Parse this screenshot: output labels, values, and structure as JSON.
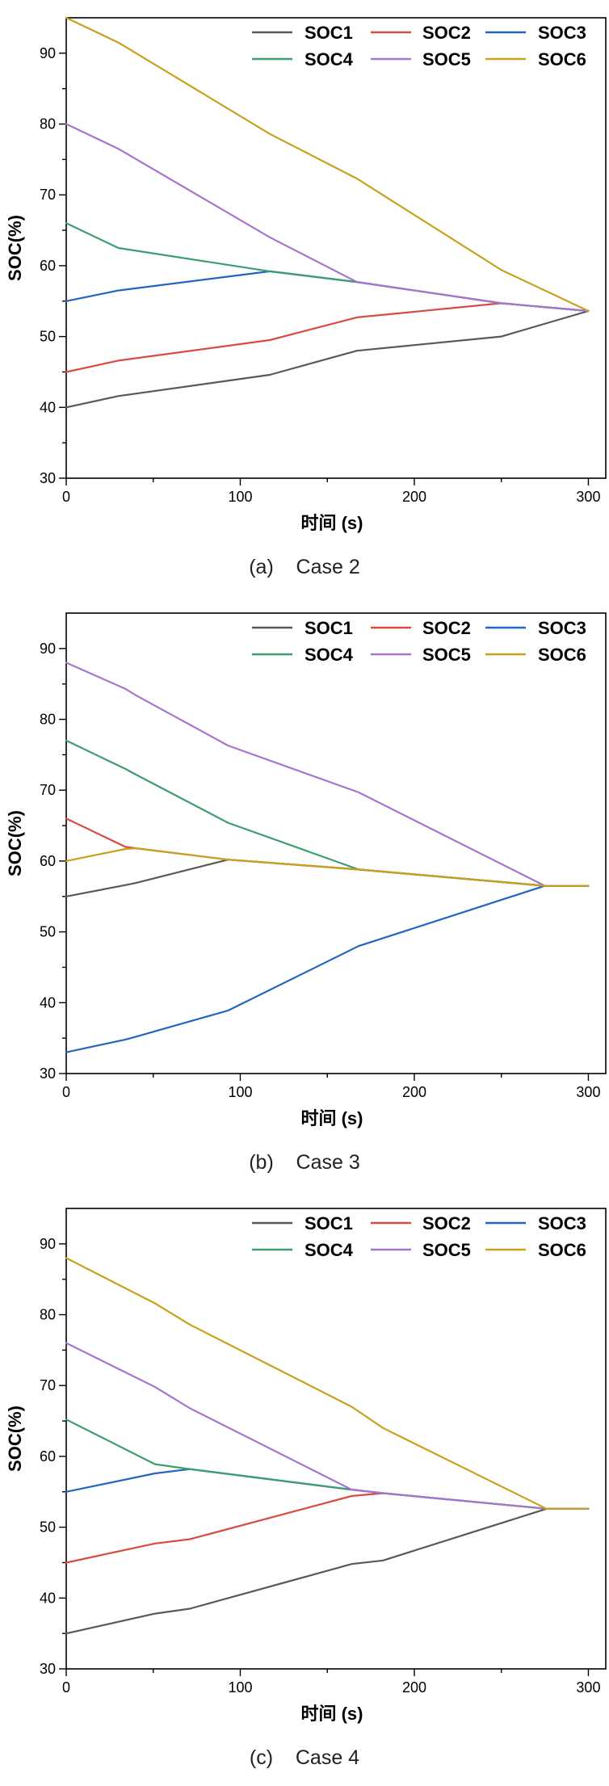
{
  "series_colors": {
    "SOC1": "#595959",
    "SOC2": "#d84a44",
    "SOC3": "#2465c2",
    "SOC4": "#3a9e6e",
    "SOC5": "#a775d0",
    "SOC6": "#c8a11e"
  },
  "chart_data": [
    {
      "type": "line",
      "caption": "(a)    Case 2",
      "xlabel": "时间 (s)",
      "ylabel": "SOC(%)",
      "xlim": [
        0,
        310
      ],
      "ylim": [
        30,
        95
      ],
      "xticks": [
        0,
        100,
        200,
        300
      ],
      "yticks": [
        30,
        40,
        50,
        60,
        70,
        80,
        90
      ],
      "legend": [
        "SOC1",
        "SOC2",
        "SOC3",
        "SOC4",
        "SOC5",
        "SOC6"
      ],
      "series": [
        {
          "name": "SOC1",
          "points": [
            [
              0,
              40
            ],
            [
              30,
              41.6
            ],
            [
              117,
              44.6
            ],
            [
              167,
              48
            ],
            [
              250,
              50
            ],
            [
              300,
              53.6
            ]
          ]
        },
        {
          "name": "SOC2",
          "points": [
            [
              0,
              45
            ],
            [
              30,
              46.6
            ],
            [
              117,
              49.5
            ],
            [
              167,
              52.7
            ],
            [
              250,
              54.7
            ],
            [
              300,
              53.6
            ]
          ]
        },
        {
          "name": "SOC3",
          "points": [
            [
              0,
              55
            ],
            [
              30,
              56.5
            ],
            [
              117,
              59.2
            ],
            [
              167,
              57.7
            ],
            [
              250,
              54.7
            ],
            [
              300,
              53.6
            ]
          ]
        },
        {
          "name": "SOC4",
          "points": [
            [
              0,
              66
            ],
            [
              30,
              62.5
            ],
            [
              117,
              59.2
            ],
            [
              167,
              57.7
            ],
            [
              250,
              54.7
            ],
            [
              300,
              53.6
            ]
          ]
        },
        {
          "name": "SOC5",
          "points": [
            [
              0,
              80
            ],
            [
              30,
              76.5
            ],
            [
              117,
              64
            ],
            [
              167,
              57.7
            ],
            [
              250,
              54.7
            ],
            [
              300,
              53.6
            ]
          ]
        },
        {
          "name": "SOC6",
          "points": [
            [
              0,
              95
            ],
            [
              30,
              91.5
            ],
            [
              117,
              78.6
            ],
            [
              167,
              72.3
            ],
            [
              250,
              59.4
            ],
            [
              300,
              53.6
            ]
          ]
        }
      ]
    },
    {
      "type": "line",
      "caption": "(b)    Case 3",
      "xlabel": "时间 (s)",
      "ylabel": "SOC(%)",
      "xlim": [
        0,
        310
      ],
      "ylim": [
        30,
        95
      ],
      "xticks": [
        0,
        100,
        200,
        300
      ],
      "yticks": [
        30,
        40,
        50,
        60,
        70,
        80,
        90
      ],
      "legend": [
        "SOC1",
        "SOC2",
        "SOC3",
        "SOC4",
        "SOC5",
        "SOC6"
      ],
      "series": [
        {
          "name": "SOC1",
          "points": [
            [
              0,
              55
            ],
            [
              34,
              56.6
            ],
            [
              40,
              56.9
            ],
            [
              93,
              60.2
            ],
            [
              168,
              58.8
            ],
            [
              275,
              56.5
            ],
            [
              300,
              56.5
            ]
          ]
        },
        {
          "name": "SOC2",
          "points": [
            [
              0,
              66
            ],
            [
              34,
              62
            ],
            [
              40,
              61.8
            ],
            [
              93,
              60.2
            ],
            [
              168,
              58.8
            ],
            [
              275,
              56.5
            ],
            [
              300,
              56.5
            ]
          ]
        },
        {
          "name": "SOC3",
          "points": [
            [
              0,
              33
            ],
            [
              34,
              34.8
            ],
            [
              40,
              35.2
            ],
            [
              93,
              38.9
            ],
            [
              168,
              48
            ],
            [
              275,
              56.5
            ],
            [
              300,
              56.5
            ]
          ]
        },
        {
          "name": "SOC4",
          "points": [
            [
              0,
              77
            ],
            [
              34,
              73
            ],
            [
              40,
              72.2
            ],
            [
              93,
              65.4
            ],
            [
              168,
              58.8
            ],
            [
              275,
              56.5
            ],
            [
              300,
              56.5
            ]
          ]
        },
        {
          "name": "SOC5",
          "points": [
            [
              0,
              88
            ],
            [
              34,
              84.3
            ],
            [
              40,
              83.4
            ],
            [
              93,
              76.3
            ],
            [
              168,
              69.7
            ],
            [
              275,
              56.5
            ],
            [
              300,
              56.5
            ]
          ]
        },
        {
          "name": "SOC6",
          "points": [
            [
              0,
              60
            ],
            [
              34,
              61.7
            ],
            [
              40,
              61.8
            ],
            [
              93,
              60.2
            ],
            [
              168,
              58.8
            ],
            [
              275,
              56.5
            ],
            [
              300,
              56.5
            ]
          ]
        }
      ]
    },
    {
      "type": "line",
      "caption": "(c)    Case 4",
      "xlabel": "时间 (s)",
      "ylabel": "SOC(%)",
      "xlim": [
        0,
        310
      ],
      "ylim": [
        30,
        95
      ],
      "xticks": [
        0,
        100,
        200,
        300
      ],
      "yticks": [
        30,
        40,
        50,
        60,
        70,
        80,
        90
      ],
      "legend": [
        "SOC1",
        "SOC2",
        "SOC3",
        "SOC4",
        "SOC5",
        "SOC6"
      ],
      "series": [
        {
          "name": "SOC1",
          "points": [
            [
              0,
              35
            ],
            [
              51,
              37.8
            ],
            [
              71,
              38.5
            ],
            [
              164,
              44.8
            ],
            [
              182,
              45.3
            ],
            [
              276,
              52.6
            ],
            [
              300,
              52.6
            ]
          ]
        },
        {
          "name": "SOC2",
          "points": [
            [
              0,
              45
            ],
            [
              51,
              47.7
            ],
            [
              71,
              48.3
            ],
            [
              164,
              54.4
            ],
            [
              182,
              54.8
            ],
            [
              276,
              52.6
            ],
            [
              300,
              52.6
            ]
          ]
        },
        {
          "name": "SOC3",
          "points": [
            [
              0,
              55
            ],
            [
              51,
              57.6
            ],
            [
              71,
              58.2
            ],
            [
              164,
              55.3
            ],
            [
              182,
              54.8
            ],
            [
              276,
              52.6
            ],
            [
              300,
              52.6
            ]
          ]
        },
        {
          "name": "SOC4",
          "points": [
            [
              0,
              65.2
            ],
            [
              51,
              58.9
            ],
            [
              71,
              58.2
            ],
            [
              164,
              55.3
            ],
            [
              182,
              54.8
            ],
            [
              276,
              52.6
            ],
            [
              300,
              52.6
            ]
          ]
        },
        {
          "name": "SOC5",
          "points": [
            [
              0,
              76
            ],
            [
              51,
              69.8
            ],
            [
              71,
              66.8
            ],
            [
              164,
              55.3
            ],
            [
              182,
              54.8
            ],
            [
              276,
              52.6
            ],
            [
              300,
              52.6
            ]
          ]
        },
        {
          "name": "SOC6",
          "points": [
            [
              0,
              88
            ],
            [
              51,
              81.6
            ],
            [
              71,
              78.6
            ],
            [
              164,
              67
            ],
            [
              182,
              64
            ],
            [
              276,
              52.6
            ],
            [
              300,
              52.6
            ]
          ]
        }
      ]
    }
  ]
}
